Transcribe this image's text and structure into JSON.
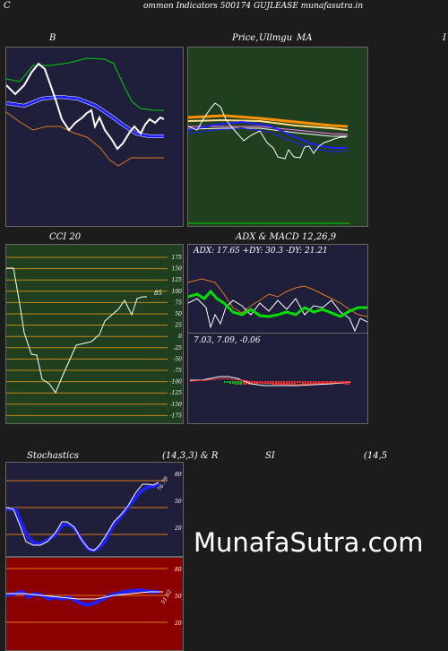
{
  "header": {
    "left_mark": "C",
    "title": "ommon  Indicators 500174  GUJLEASE munafasutra.in"
  },
  "panels": {
    "bollinger": {
      "title": "B"
    },
    "price": {
      "title_a": "Price,",
      "title_b": "Ullmgu",
      "title_c": "MA",
      "edge_mark": "I"
    },
    "cci": {
      "title": "CCI 20",
      "value_label": "85",
      "levels": [
        "175",
        "150",
        "125",
        "100",
        "75",
        "50",
        "25",
        "0",
        "-25",
        "-50",
        "-75",
        "-100",
        "-125",
        "-150",
        "-175"
      ]
    },
    "adx": {
      "title": "ADX  & MACD 12,26,9",
      "readout": "ADX: 17.65  +DY: 30.3 -DY: 21.21"
    },
    "macd": {
      "readout": "7.03,  7.09,  -0.06"
    },
    "stochastics": {
      "title": "Stochastics",
      "params": "(14,3,3) & R",
      "value_label": "76.79",
      "levels": [
        "80",
        "50",
        "20"
      ]
    },
    "rsi": {
      "title": "SI",
      "params": "(14,5",
      "value_label": "51.02",
      "levels": [
        "80",
        "50",
        "20"
      ]
    }
  },
  "watermark": "MunafaSutra.com",
  "colors": {
    "dark_panel": "#1f1f3c",
    "green_panel": "#1f3f1f",
    "red_panel": "#8b0000",
    "white": "#ffffff",
    "green": "#00e000",
    "blue": "#2020ff",
    "orange": "#e07818"
  }
}
